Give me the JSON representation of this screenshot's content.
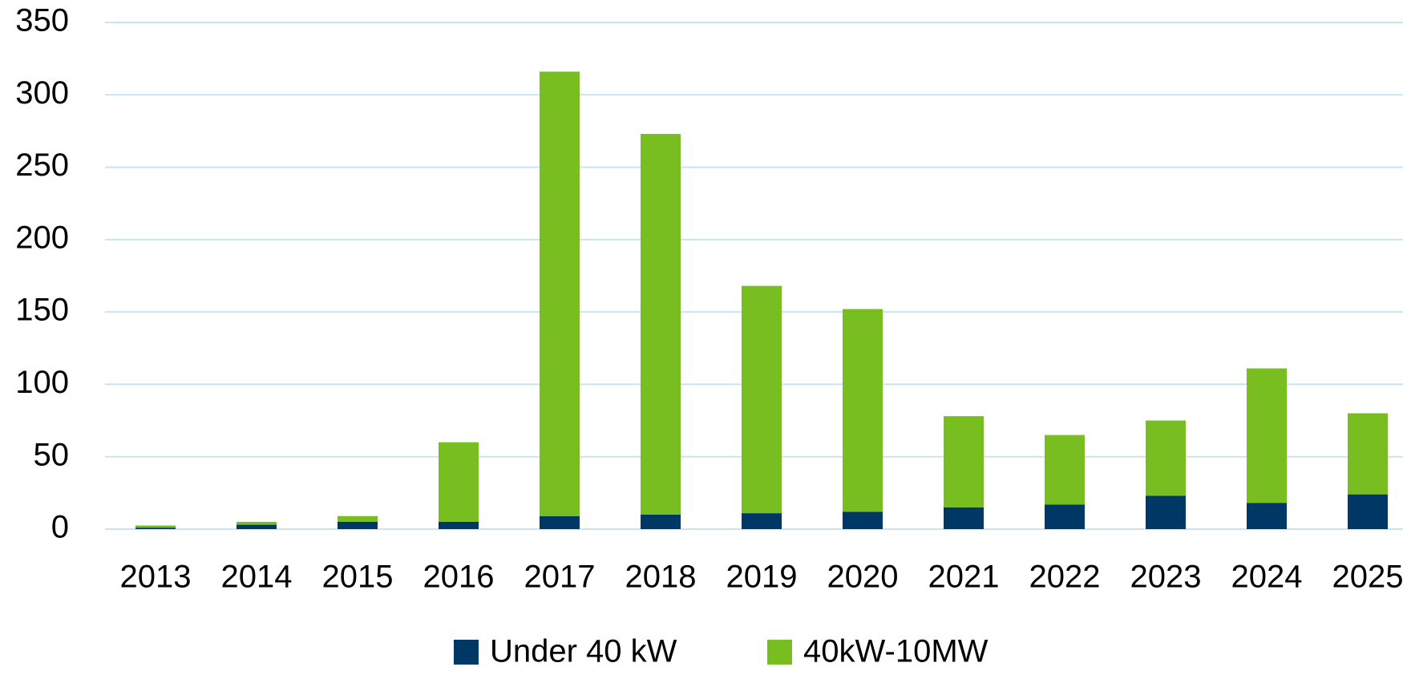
{
  "chart_data": {
    "type": "bar",
    "stacked": true,
    "categories": [
      "2013",
      "2014",
      "2015",
      "2016",
      "2017",
      "2018",
      "2019",
      "2020",
      "2021",
      "2022",
      "2023",
      "2024",
      "2025"
    ],
    "series": [
      {
        "name": "Under 40 kW",
        "color": "#003865",
        "values": [
          1,
          3,
          5,
          5,
          9,
          10,
          11,
          12,
          15,
          17,
          23,
          18,
          24
        ]
      },
      {
        "name": "40kW-10MW",
        "color": "#78be20",
        "values": [
          1.5,
          2,
          4,
          55,
          307,
          263,
          157,
          140,
          63,
          48,
          52,
          93,
          56
        ]
      }
    ],
    "ylim": [
      0,
      350
    ],
    "yticks": [
      0,
      50,
      100,
      150,
      200,
      250,
      300,
      350
    ],
    "grid": true,
    "legend": "bottom"
  }
}
